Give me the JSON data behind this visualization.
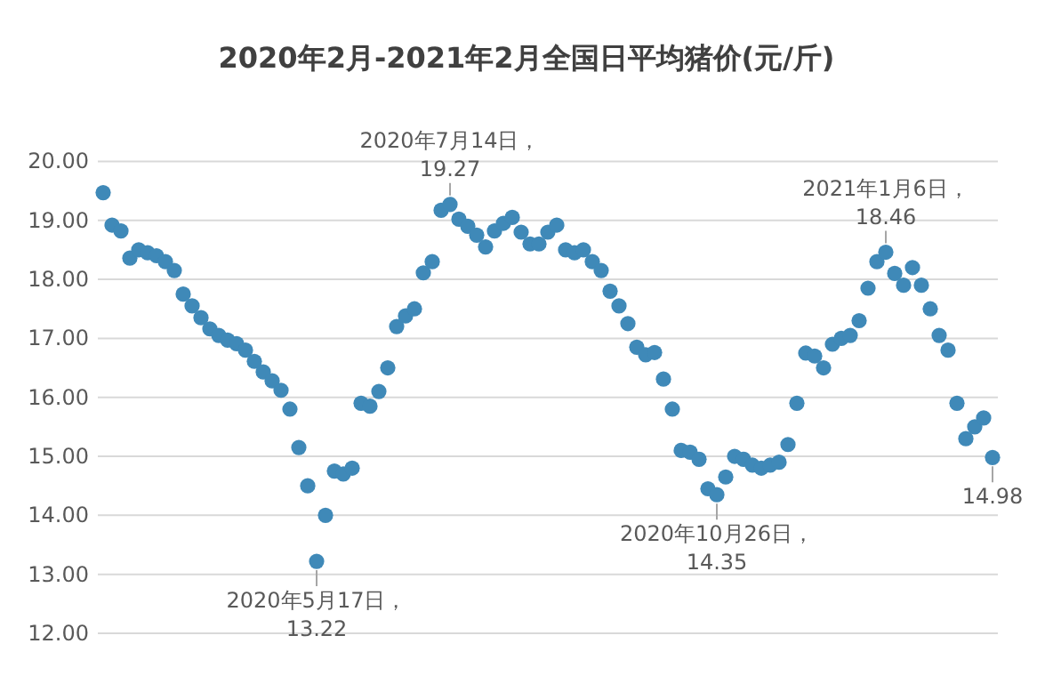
{
  "chart_data": {
    "type": "scatter",
    "title": "2020年2月-2021年2月全国日平均猪价(元/斤)",
    "categories": [
      null,
      null,
      null,
      null,
      null,
      null,
      null,
      null,
      null,
      null,
      null,
      null,
      null,
      null,
      null,
      null,
      null,
      null,
      null,
      null,
      null,
      null,
      null,
      null,
      null,
      null,
      null,
      null,
      null,
      null,
      null,
      null,
      null,
      null,
      null,
      null,
      null,
      null,
      null,
      null,
      null,
      null,
      null,
      null,
      null,
      null,
      null,
      null,
      null,
      null,
      null,
      null,
      null,
      null,
      null,
      null,
      null,
      null,
      null,
      null,
      null,
      null,
      null,
      null,
      null,
      null,
      null,
      null,
      null,
      null,
      null,
      null,
      null,
      null,
      null,
      null,
      null,
      null,
      null,
      null,
      null,
      null,
      null,
      null,
      null,
      null,
      null,
      null,
      null,
      null,
      null,
      null,
      null,
      null,
      null,
      null,
      null,
      null,
      null,
      null,
      null
    ],
    "series": [
      {
        "color": "#3f89b8",
        "values": [
          19.47,
          18.92,
          18.82,
          18.36,
          18.5,
          18.45,
          18.4,
          18.3,
          18.15,
          17.75,
          17.55,
          17.35,
          17.16,
          17.05,
          16.97,
          16.91,
          16.8,
          16.61,
          16.43,
          16.28,
          16.12,
          15.8,
          15.15,
          14.5,
          13.22,
          14.0,
          14.75,
          14.7,
          14.8,
          15.9,
          15.85,
          16.1,
          16.5,
          17.2,
          17.38,
          17.5,
          18.11,
          18.3,
          19.17,
          19.27,
          19.02,
          18.9,
          18.75,
          18.55,
          18.82,
          18.95,
          19.05,
          18.8,
          18.6,
          18.6,
          18.8,
          18.92,
          18.5,
          18.45,
          18.5,
          18.3,
          18.15,
          17.8,
          17.55,
          17.25,
          16.85,
          16.72,
          16.76,
          16.31,
          15.8,
          15.1,
          15.07,
          14.95,
          14.45,
          14.35,
          14.65,
          15.0,
          14.95,
          14.85,
          14.8,
          14.85,
          14.9,
          15.2,
          15.9,
          16.75,
          16.7,
          16.5,
          16.9,
          17.0,
          17.05,
          17.3,
          17.85,
          18.3,
          18.46,
          18.1,
          17.9,
          18.2,
          17.9,
          17.5,
          17.05,
          16.8,
          15.9,
          15.3,
          15.5,
          15.65,
          14.98
        ]
      }
    ],
    "ylim": [
      12,
      20
    ],
    "yticks": [
      {
        "value": 12,
        "label": "12.00"
      },
      {
        "value": 13,
        "label": "13.00"
      },
      {
        "value": 14,
        "label": "14.00"
      },
      {
        "value": 15,
        "label": "15.00"
      },
      {
        "value": 16,
        "label": "16.00"
      },
      {
        "value": 17,
        "label": "17.00"
      },
      {
        "value": 18,
        "label": "18.00"
      },
      {
        "value": 19,
        "label": "19.00"
      },
      {
        "value": 20,
        "label": "20.00"
      }
    ],
    "grid": "y",
    "marker": "circle",
    "tick_labels": "y",
    "annotations": [
      {
        "text": "2020年5月17日，\n13.22",
        "y": 13.22
      },
      {
        "text": "2020年7月14日，\n19.27",
        "y": 19.27
      },
      {
        "text": "2020年10月26日，\n14.35",
        "y": 14.35
      },
      {
        "text": "2021年1月6日，\n18.46",
        "y": 18.46
      },
      {
        "text": "14.98",
        "y": 14.98
      }
    ]
  }
}
